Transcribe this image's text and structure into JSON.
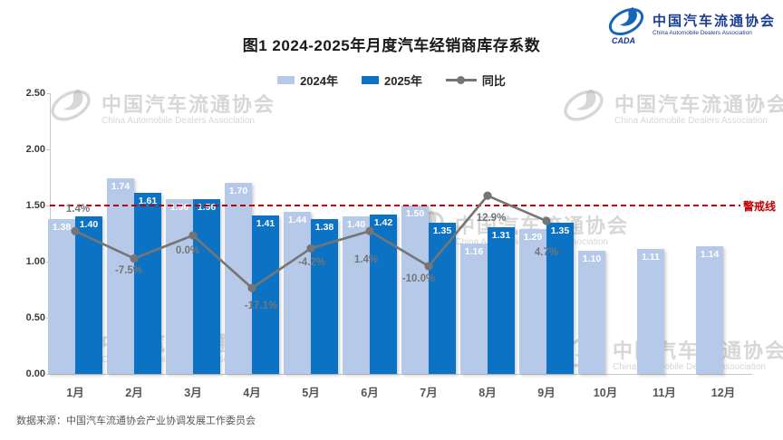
{
  "header": {
    "title": "图1  2024-2025年月度汽车经销商库存系数",
    "logo": {
      "name_cn": "中国汽车流通协会",
      "name_en": "China Automobile Dealers Association",
      "abbr": "CADA"
    }
  },
  "legend": [
    {
      "label": "2024年",
      "color": "#b6c9e8",
      "type": "swatch"
    },
    {
      "label": "2025年",
      "color": "#0b72c4",
      "type": "swatch"
    },
    {
      "label": "同比",
      "color": "#757575",
      "type": "line"
    }
  ],
  "chart_data": {
    "type": "bar",
    "title": "图1  2024-2025年月度汽车经销商库存系数",
    "categories": [
      "1月",
      "2月",
      "3月",
      "4月",
      "5月",
      "6月",
      "7月",
      "8月",
      "9月",
      "10月",
      "11月",
      "12月"
    ],
    "series": [
      {
        "name": "2024年",
        "type": "bar",
        "color": "#b6c9e8",
        "values": [
          1.38,
          1.74,
          1.56,
          1.7,
          1.44,
          1.4,
          1.5,
          1.16,
          1.29,
          1.1,
          1.11,
          1.14
        ]
      },
      {
        "name": "2025年",
        "type": "bar",
        "color": "#0b72c4",
        "values": [
          1.4,
          1.61,
          1.56,
          1.41,
          1.38,
          1.42,
          1.35,
          1.31,
          1.35,
          null,
          null,
          null
        ]
      },
      {
        "name": "同比",
        "type": "line",
        "color": "#757575",
        "unit": "%",
        "values": [
          1.4,
          -7.5,
          0.0,
          -17.1,
          -4.2,
          1.4,
          -10.0,
          12.9,
          4.7,
          null,
          null,
          null
        ],
        "point_labels": [
          "1.4%",
          "-7.5%",
          "0.0%",
          "-17.1%",
          "-4.2%",
          "1.4%",
          "-10.0%",
          "12.9%",
          "4.7%"
        ]
      }
    ],
    "y_axis": {
      "min": 0,
      "max": 2.5,
      "tick_labels": [
        "0.00",
        "0.50",
        "1.00",
        "1.50",
        "2.00",
        "2.50"
      ]
    },
    "warning_line": {
      "value": 1.5,
      "label": "警戒线",
      "color": "#c00000"
    },
    "grid": false,
    "legend_position": "top",
    "value_label_format": "2dp"
  },
  "watermark": {
    "text": "中国汽车流通协会",
    "subtext": "China Automobile Dealers Association"
  },
  "footer": {
    "source": "数据来源：中国汽车流通协会产业协调发展工作委员会"
  }
}
